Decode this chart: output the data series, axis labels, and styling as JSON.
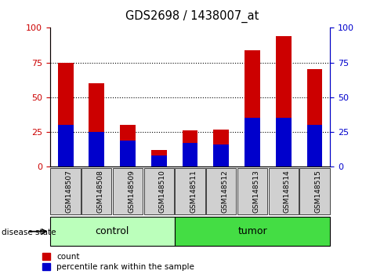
{
  "title": "GDS2698 / 1438007_at",
  "samples": [
    "GSM148507",
    "GSM148508",
    "GSM148509",
    "GSM148510",
    "GSM148511",
    "GSM148512",
    "GSM148513",
    "GSM148514",
    "GSM148515"
  ],
  "count_values": [
    75,
    60,
    30,
    12,
    26,
    27,
    84,
    94,
    70
  ],
  "percentile_values": [
    30,
    25,
    19,
    8,
    17,
    16,
    35,
    35,
    30
  ],
  "n_control": 4,
  "n_tumor": 5,
  "bar_color_red": "#cc0000",
  "bar_color_blue": "#0000cc",
  "control_color": "#bbffbb",
  "tumor_color": "#44dd44",
  "ylim": [
    0,
    100
  ],
  "yticks": [
    0,
    25,
    50,
    75,
    100
  ],
  "bar_width": 0.5,
  "label_count": "count",
  "label_percentile": "percentile rank within the sample",
  "disease_state_label": "disease state",
  "control_label": "control",
  "tumor_label": "tumor"
}
